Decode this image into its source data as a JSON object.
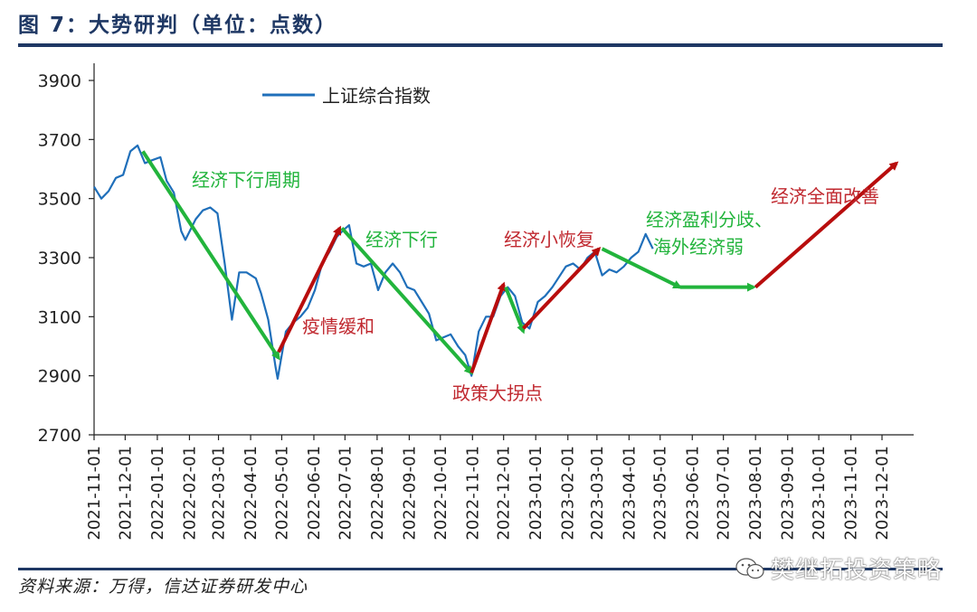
{
  "header": {
    "title": "图 7：大势研判（单位：点数）"
  },
  "footer": {
    "source": "资料来源：万得，信达证券研发中心",
    "watermark": "樊继拓投资策略"
  },
  "colors": {
    "title": "#1f3864",
    "index_line": "#1f6fba",
    "down_arrow": "#22b43c",
    "up_arrow": "#b80d0d",
    "down_text": "#22b43c",
    "up_text": "#c0282f"
  },
  "chart_data": {
    "type": "line",
    "title": "",
    "xlabel": "",
    "ylabel": "",
    "ylim": [
      2700,
      3900
    ],
    "yticks": [
      2700,
      2900,
      3100,
      3300,
      3500,
      3700,
      3900
    ],
    "xticks": [
      "2021-11-01",
      "2021-12-01",
      "2022-01-01",
      "2022-02-01",
      "2022-03-01",
      "2022-04-01",
      "2022-05-01",
      "2022-06-01",
      "2022-07-01",
      "2022-08-01",
      "2022-09-01",
      "2022-10-01",
      "2022-11-01",
      "2022-12-01",
      "2023-01-01",
      "2023-02-01",
      "2023-03-01",
      "2023-04-01",
      "2023-05-01",
      "2023-06-01",
      "2023-07-01",
      "2023-08-01",
      "2023-09-01",
      "2023-10-01",
      "2023-11-01",
      "2023-12-01"
    ],
    "legend": {
      "position": "top-left",
      "entries": [
        "上证综合指数"
      ]
    },
    "grid": false,
    "series": [
      {
        "name": "上证综合指数",
        "x": [
          "2021-11-01",
          "2021-11-08",
          "2021-11-15",
          "2021-11-22",
          "2021-11-29",
          "2021-12-06",
          "2021-12-13",
          "2021-12-20",
          "2021-12-27",
          "2022-01-04",
          "2022-01-10",
          "2022-01-17",
          "2022-01-24",
          "2022-01-28",
          "2022-02-07",
          "2022-02-14",
          "2022-02-21",
          "2022-02-28",
          "2022-03-07",
          "2022-03-14",
          "2022-03-21",
          "2022-03-28",
          "2022-04-06",
          "2022-04-11",
          "2022-04-18",
          "2022-04-25",
          "2022-04-27",
          "2022-05-05",
          "2022-05-12",
          "2022-05-19",
          "2022-05-26",
          "2022-06-02",
          "2022-06-09",
          "2022-06-16",
          "2022-06-23",
          "2022-06-30",
          "2022-07-05",
          "2022-07-12",
          "2022-07-19",
          "2022-07-26",
          "2022-08-02",
          "2022-08-09",
          "2022-08-16",
          "2022-08-23",
          "2022-08-30",
          "2022-09-06",
          "2022-09-13",
          "2022-09-20",
          "2022-09-27",
          "2022-10-11",
          "2022-10-18",
          "2022-10-25",
          "2022-10-31",
          "2022-11-07",
          "2022-11-14",
          "2022-11-21",
          "2022-11-28",
          "2022-12-05",
          "2022-12-12",
          "2022-12-19",
          "2022-12-26",
          "2023-01-03",
          "2023-01-10",
          "2023-01-17",
          "2023-01-30",
          "2023-02-06",
          "2023-02-13",
          "2023-02-20",
          "2023-02-27",
          "2023-03-06",
          "2023-03-13",
          "2023-03-20",
          "2023-03-27",
          "2023-04-03",
          "2023-04-10",
          "2023-04-17",
          "2023-04-24"
        ],
        "values": [
          3540,
          3500,
          3525,
          3570,
          3580,
          3660,
          3680,
          3620,
          3630,
          3640,
          3560,
          3520,
          3390,
          3360,
          3430,
          3460,
          3470,
          3450,
          3280,
          3090,
          3250,
          3250,
          3230,
          3180,
          3090,
          2930,
          2890,
          3050,
          3080,
          3100,
          3130,
          3190,
          3280,
          3320,
          3370,
          3395,
          3410,
          3280,
          3270,
          3280,
          3190,
          3250,
          3280,
          3250,
          3200,
          3190,
          3150,
          3110,
          3020,
          3040,
          3000,
          2970,
          2900,
          3050,
          3100,
          3100,
          3170,
          3200,
          3170,
          3080,
          3060,
          3150,
          3170,
          3200,
          3270,
          3280,
          3260,
          3300,
          3320,
          3240,
          3260,
          3250,
          3270,
          3300,
          3320,
          3380,
          3330
        ]
      }
    ],
    "annotations": [
      {
        "text": "经济下行周期",
        "kind": "down",
        "from": [
          "2021-12-18",
          3660
        ],
        "to": [
          "2022-04-28",
          2960
        ]
      },
      {
        "text": "疫情缓和",
        "kind": "up",
        "from": [
          "2022-04-28",
          2980
        ],
        "to": [
          "2022-06-26",
          3400
        ]
      },
      {
        "text": "经济下行",
        "kind": "down",
        "from": [
          "2022-06-28",
          3400
        ],
        "to": [
          "2022-10-31",
          2910
        ]
      },
      {
        "text": "政策大拐点",
        "kind": "up",
        "from": [
          "2022-10-31",
          2910
        ],
        "to": [
          "2022-12-01",
          3210
        ]
      },
      {
        "text": "",
        "kind": "down",
        "from": [
          "2022-12-03",
          3200
        ],
        "to": [
          "2022-12-20",
          3050
        ]
      },
      {
        "text": "经济小恢复",
        "kind": "up",
        "from": [
          "2022-12-20",
          3060
        ],
        "to": [
          "2023-03-03",
          3330
        ]
      },
      {
        "text": "经济盈利分歧、\n海外经济弱",
        "kind": "down",
        "from": [
          "2023-03-06",
          3330
        ],
        "to": [
          "2023-05-20",
          3200
        ]
      },
      {
        "text": "",
        "kind": "down",
        "from": [
          "2023-05-20",
          3200
        ],
        "to": [
          "2023-07-30",
          3200
        ]
      },
      {
        "text": "经济全面改善",
        "kind": "up",
        "from": [
          "2023-08-01",
          3200
        ],
        "to": [
          "2023-12-15",
          3620
        ]
      }
    ]
  }
}
